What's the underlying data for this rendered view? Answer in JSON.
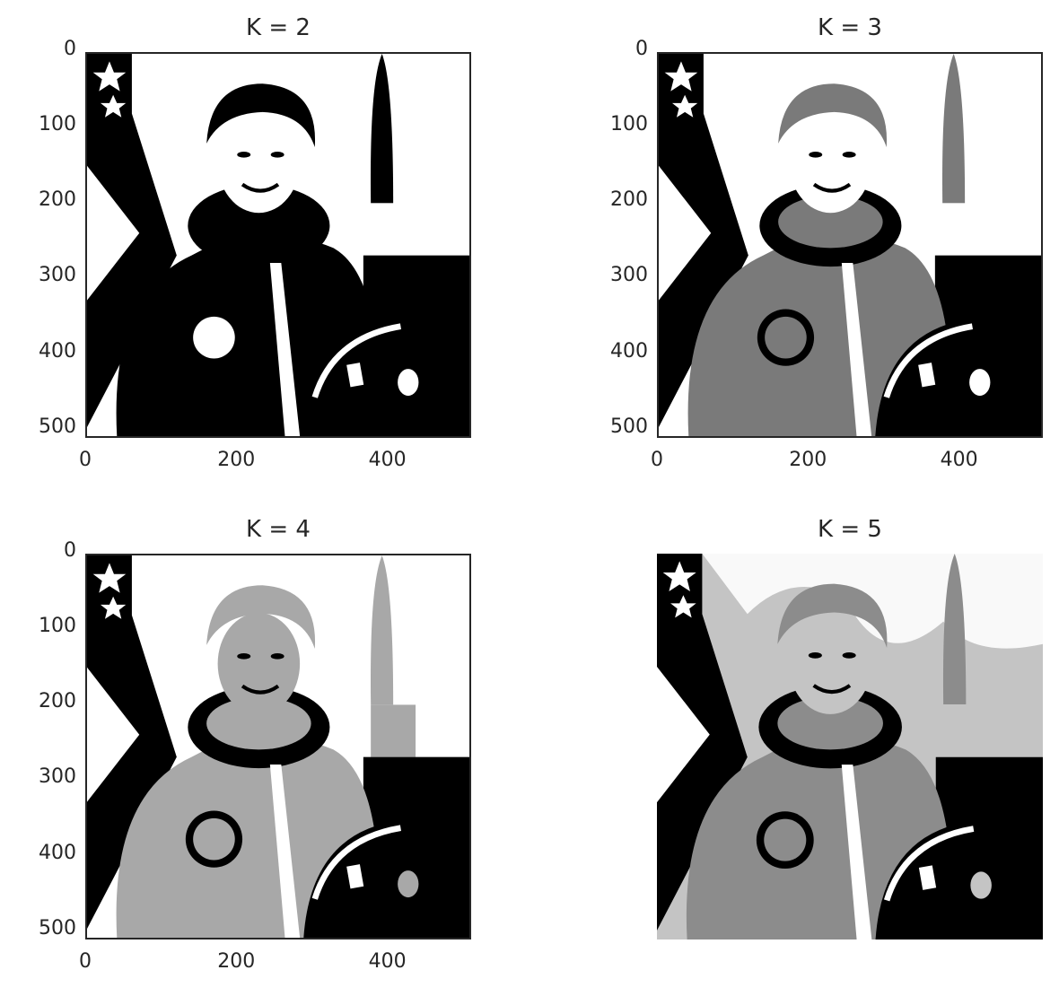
{
  "figure": {
    "panels": [
      {
        "title": "K = 2",
        "k": 2,
        "show_axes": true
      },
      {
        "title": "K = 3",
        "k": 3,
        "show_axes": true
      },
      {
        "title": "K = 4",
        "k": 4,
        "show_axes": true
      },
      {
        "title": "K = 5",
        "k": 5,
        "show_axes": false
      }
    ],
    "y_ticks": [
      "0",
      "100",
      "200",
      "300",
      "400",
      "500"
    ],
    "x_ticks": [
      "0",
      "200",
      "400"
    ],
    "axis_range": [
      0,
      511
    ],
    "image_subject": "astronaut portrait (posterized grayscale)"
  }
}
